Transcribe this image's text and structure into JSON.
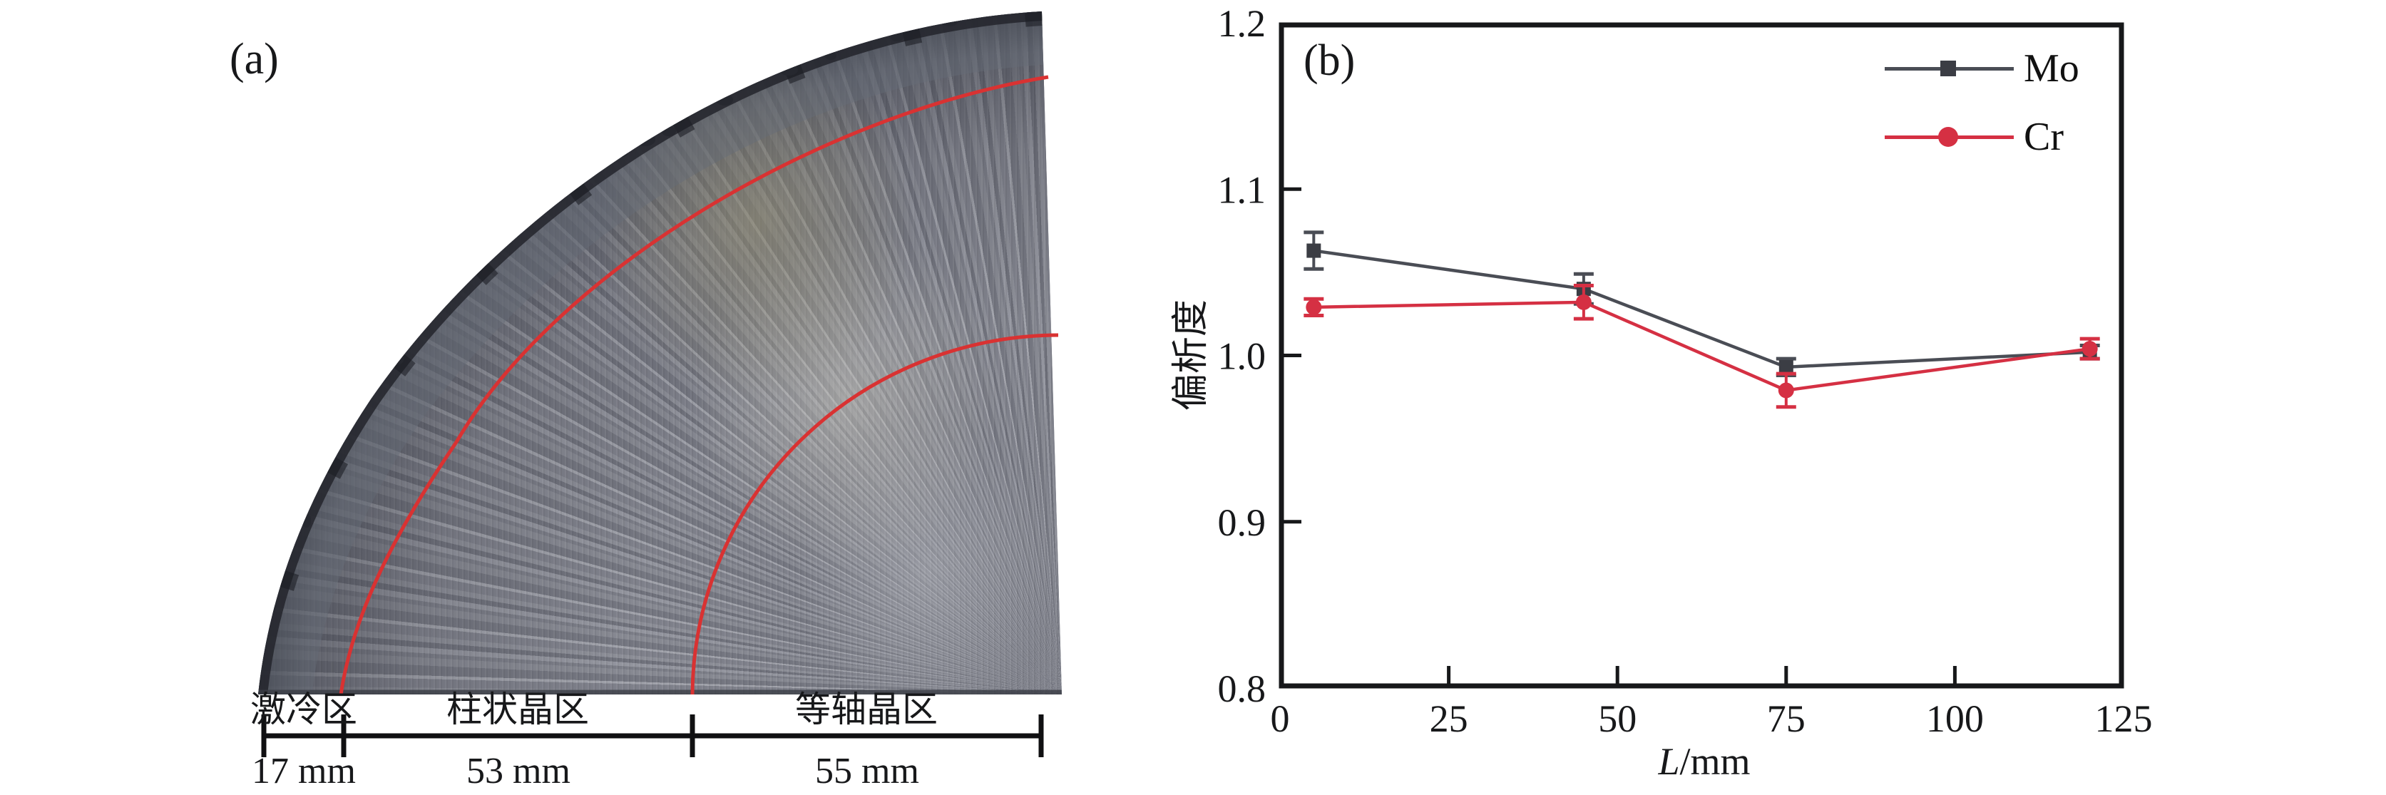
{
  "figure": {
    "panel_a": {
      "label": "(a)",
      "zones": [
        {
          "name": "激冷区",
          "length": "17 mm"
        },
        {
          "name": "柱状晶区",
          "length": "53 mm"
        },
        {
          "name": "等轴晶区",
          "length": "55 mm"
        }
      ]
    },
    "panel_b": {
      "label": "(b)",
      "ylabel": "偏析度",
      "xlabel_var": "L",
      "xlabel_unit": "/mm"
    }
  },
  "chart_data": {
    "type": "line",
    "title": "",
    "xlabel": "L/mm",
    "ylabel": "偏析度",
    "x": [
      5,
      45,
      75,
      120
    ],
    "series": [
      {
        "name": "Mo",
        "values": [
          1.063,
          1.04,
          0.993,
          1.002
        ],
        "errors": [
          0.011,
          0.009,
          0.005,
          0.004
        ],
        "color": "#4a4d55",
        "marker": "square",
        "marker_color": "#3b3d44"
      },
      {
        "name": "Cr",
        "values": [
          1.029,
          1.032,
          0.979,
          1.004
        ],
        "errors": [
          0.005,
          0.01,
          0.01,
          0.006
        ],
        "color": "#d53043",
        "marker": "circle",
        "marker_color": "#d53043"
      }
    ],
    "xlim": [
      0,
      125
    ],
    "ylim": [
      0.8,
      1.2
    ],
    "x_ticks": [
      0,
      25,
      50,
      75,
      100,
      125
    ],
    "y_ticks": [
      "1.2",
      "1.1",
      "1.0",
      "0.9",
      "0.8"
    ],
    "legend_position": "top-right",
    "grid": false
  }
}
